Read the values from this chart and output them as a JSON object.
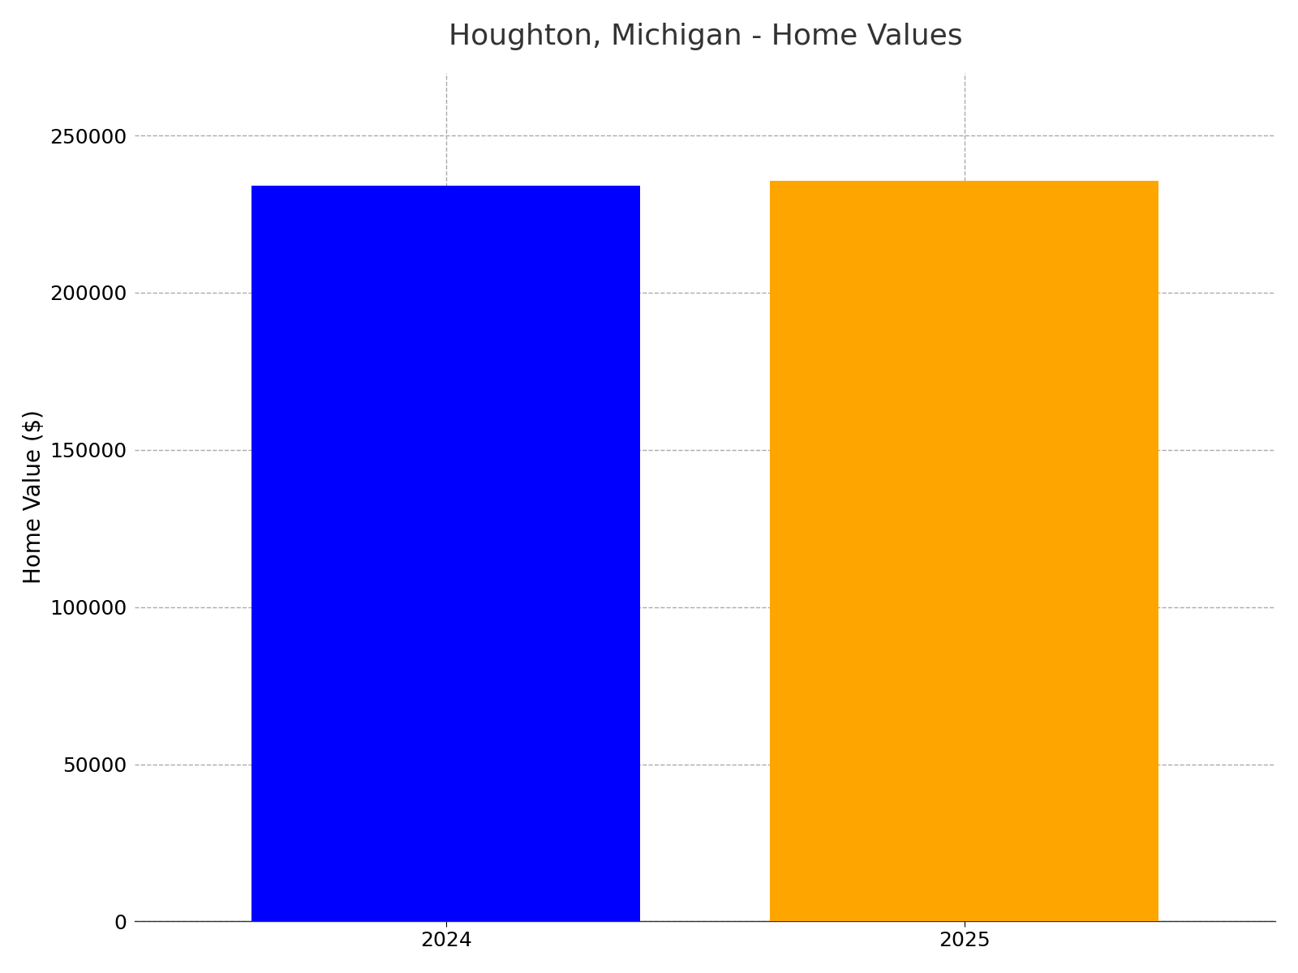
{
  "title": "Houghton, Michigan - Home Values",
  "categories": [
    "2024",
    "2025"
  ],
  "values": [
    234000,
    235500
  ],
  "bar_colors": [
    "#0000ff",
    "#ffa500"
  ],
  "ylabel": "Home Value ($)",
  "ylim": [
    0,
    270000
  ],
  "yticks": [
    0,
    50000,
    100000,
    150000,
    200000,
    250000
  ],
  "title_fontsize": 26,
  "label_fontsize": 20,
  "tick_fontsize": 18,
  "background_color": "#ffffff",
  "grid_color": "#aaaaaa",
  "bar_width": 0.75,
  "figsize": [
    16.0,
    12.0
  ],
  "dpi": 100
}
